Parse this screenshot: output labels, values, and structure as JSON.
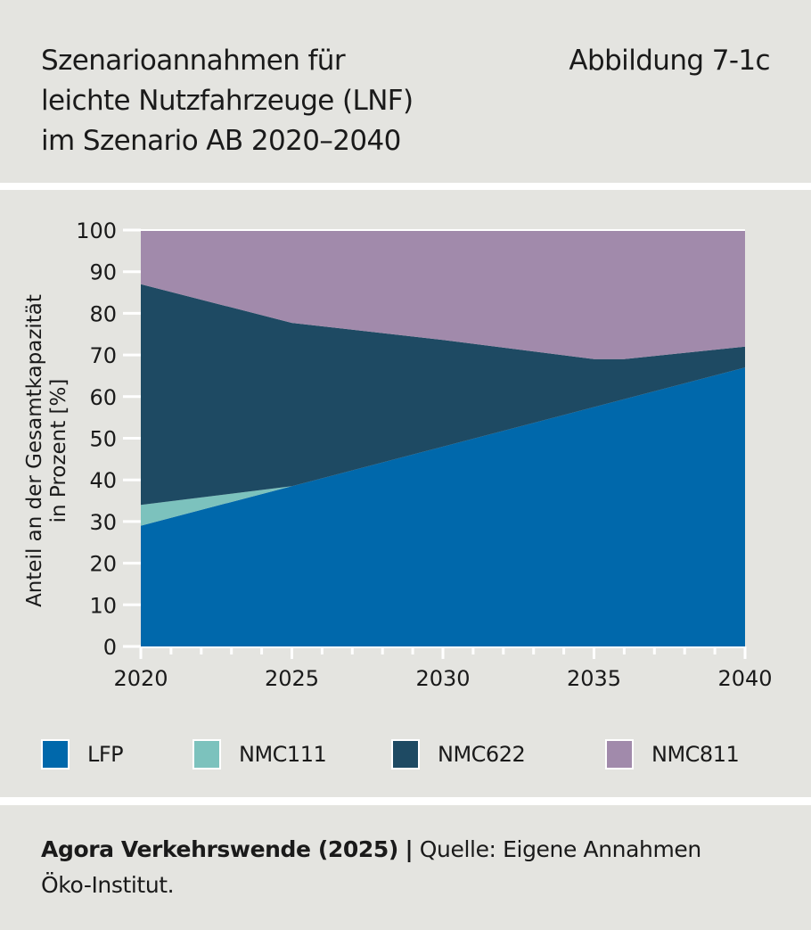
{
  "header": {
    "title_lines": [
      "Szenarioannahmen für",
      "leichte Nutzfahrzeuge (LNF)",
      "im Szenario AB 2020–2040"
    ],
    "figure_number": "Abbildung 7-1c"
  },
  "footer": {
    "source_bold": "Agora Verkehrswende (2025)",
    "separator": "|",
    "source_rest": " Quelle: Eigene Annahmen",
    "source_line2": "Öko-Institut."
  },
  "chart_data": {
    "type": "area",
    "stacked": true,
    "title": "Szenarioannahmen für leichte Nutzfahrzeuge (LNF) im Szenario AB 2020–2040",
    "xlabel": "",
    "ylabel_lines": [
      "Anteil an der Gesamtkapazität",
      "in Prozent [%]"
    ],
    "x": [
      2020,
      2025,
      2030,
      2035,
      2036,
      2040
    ],
    "xlim": [
      2020,
      2040
    ],
    "ylim": [
      0,
      100
    ],
    "x_ticks": [
      "2020",
      "2025",
      "2030",
      "2035",
      "2040"
    ],
    "y_ticks": [
      "0",
      "10",
      "20",
      "30",
      "40",
      "50",
      "60",
      "70",
      "80",
      "90",
      "100"
    ],
    "grid": false,
    "legend_position": "bottom",
    "series": [
      {
        "name": "LFP",
        "color": "#0068ab",
        "values": [
          29,
          38.5,
          48,
          57.5,
          59.4,
          67
        ]
      },
      {
        "name": "NMC111",
        "color": "#7cc2bd",
        "values": [
          5,
          0,
          0,
          0,
          0,
          0
        ]
      },
      {
        "name": "NMC622",
        "color": "#1e4a63",
        "values": [
          53,
          39.2,
          25.6,
          11.5,
          9.6,
          5
        ]
      },
      {
        "name": "NMC811",
        "color": "#a18aab",
        "values": [
          13,
          22.3,
          26.4,
          31,
          31,
          28
        ]
      }
    ]
  }
}
